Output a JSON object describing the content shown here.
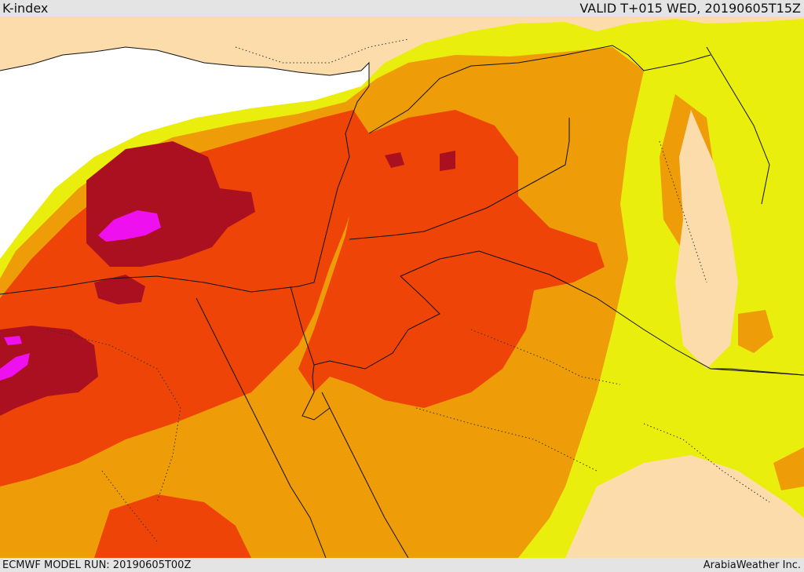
{
  "header": {
    "title": "K-index",
    "valid": "VALID T+015 WED, 20190605T15Z"
  },
  "footer": {
    "model_run": "ECMWF MODEL RUN: 20190605T00Z",
    "credit": "ArabiaWeather Inc."
  },
  "colors": {
    "sea": "#ffffff",
    "background_land": "#fcdcaa",
    "band_yellow": "#eaee0c",
    "band_orange": "#ee9c08",
    "band_red_orange": "#ee4408",
    "band_dark_red": "#aa1020",
    "band_magenta": "#ee10ee",
    "border_line": "#111111"
  }
}
